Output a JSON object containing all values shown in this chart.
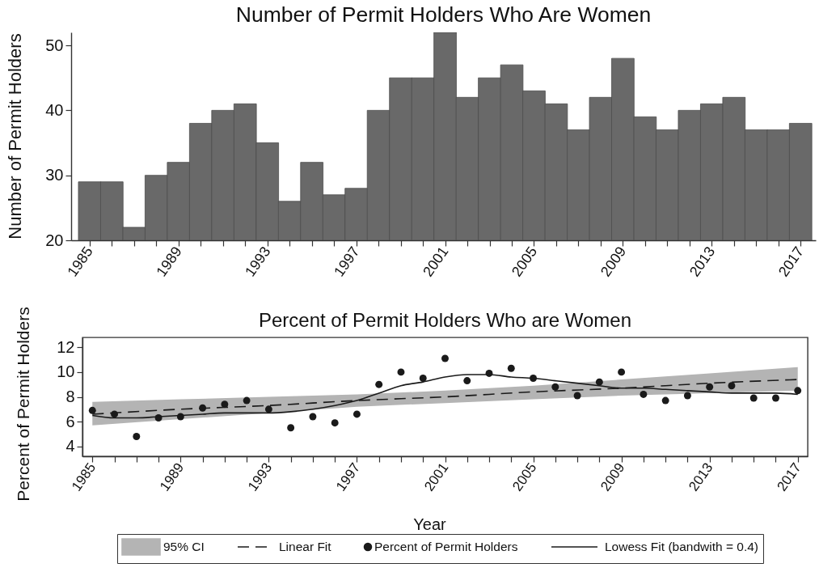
{
  "chart_data": [
    {
      "type": "bar",
      "title": "Number of Permit Holders Who Are Women",
      "ylabel": "Number of Permit Holders",
      "x": [
        1985,
        1986,
        1987,
        1988,
        1989,
        1990,
        1991,
        1992,
        1993,
        1994,
        1995,
        1996,
        1997,
        1998,
        1999,
        2000,
        2001,
        2002,
        2003,
        2004,
        2005,
        2006,
        2007,
        2008,
        2009,
        2010,
        2011,
        2012,
        2013,
        2014,
        2015,
        2016,
        2017
      ],
      "values": [
        29,
        29,
        22,
        30,
        32,
        38,
        40,
        41,
        35,
        26,
        32,
        27,
        28,
        40,
        45,
        45,
        52,
        42,
        45,
        47,
        43,
        41,
        37,
        42,
        48,
        39,
        37,
        40,
        41,
        42,
        37,
        37,
        38
      ],
      "color": "#696969",
      "xlim": [
        1984.35,
        2017.5
      ],
      "xticks": [
        1985,
        {
          "value": 1986,
          "label": null
        },
        {
          "value": 1987,
          "label": null
        },
        {
          "value": 1988,
          "label": null
        },
        1989,
        {
          "value": 1990,
          "label": null
        },
        {
          "value": 1991,
          "label": null
        },
        {
          "value": 1992,
          "label": null
        },
        1993,
        {
          "value": 1994,
          "label": null
        },
        {
          "value": 1995,
          "label": null
        },
        {
          "value": 1996,
          "label": null
        },
        1997,
        {
          "value": 1998,
          "label": null
        },
        {
          "value": 1999,
          "label": null
        },
        {
          "value": 2000,
          "label": null
        },
        2001,
        {
          "value": 2002,
          "label": null
        },
        {
          "value": 2003,
          "label": null
        },
        {
          "value": 2004,
          "label": null
        },
        2005,
        {
          "value": 2006,
          "label": null
        },
        {
          "value": 2007,
          "label": null
        },
        {
          "value": 2008,
          "label": null
        },
        2009,
        {
          "value": 2010,
          "label": null
        },
        {
          "value": 2011,
          "label": null
        },
        {
          "value": 2012,
          "label": null
        },
        2013,
        {
          "value": 2014,
          "label": null
        },
        {
          "value": 2015,
          "label": null
        },
        {
          "value": 2016,
          "label": null
        },
        2017
      ],
      "ylim": [
        20,
        52
      ],
      "yticks": [
        20,
        30,
        40,
        50
      ]
    },
    {
      "type": "scatter",
      "title": "Percent of Permit Holders Who are Women",
      "xlabel": "Year",
      "ylabel": "Percent of Permit Holders",
      "x": [
        1985,
        1986,
        1987,
        1988,
        1989,
        1990,
        1991,
        1992,
        1993,
        1994,
        1995,
        1996,
        1997,
        1998,
        1999,
        2000,
        2001,
        2002,
        2003,
        2004,
        2005,
        2006,
        2007,
        2008,
        2009,
        2010,
        2011,
        2012,
        2013,
        2014,
        2015,
        2016,
        2017
      ],
      "series": [
        {
          "name": "Linear Fit",
          "type": "line",
          "line_style": "dashed",
          "color": "#1a1a1a",
          "x": [
            1985,
            1989,
            1993,
            1997,
            2001,
            2005,
            2009,
            2013,
            2017
          ],
          "values": [
            6.6,
            7.0,
            7.3,
            7.7,
            8.0,
            8.4,
            8.7,
            9.1,
            9.4
          ],
          "lower": [
            5.7,
            6.2,
            6.7,
            7.2,
            7.5,
            7.8,
            8.1,
            8.3,
            8.5
          ],
          "upper": [
            7.6,
            7.8,
            8.0,
            8.2,
            8.5,
            8.9,
            9.4,
            9.9,
            10.4
          ]
        },
        {
          "name": "Percent of Permit Holders",
          "type": "scatter",
          "marker": "circle",
          "color": "#1a1a1a",
          "values": [
            6.9,
            6.6,
            4.8,
            6.3,
            6.4,
            7.1,
            7.4,
            7.7,
            7.0,
            5.5,
            6.4,
            5.9,
            6.6,
            9.0,
            10.0,
            9.5,
            11.1,
            9.3,
            9.9,
            10.3,
            9.5,
            8.8,
            8.1,
            9.2,
            10.0,
            8.2,
            7.7,
            8.1,
            8.8,
            8.9,
            7.9,
            7.9,
            8.5
          ]
        },
        {
          "name": "Lowess Fit (bandwith = 0.4)",
          "type": "line",
          "line_style": "solid",
          "color": "#1a1a1a",
          "values": [
            6.5,
            6.3,
            6.3,
            6.4,
            6.5,
            6.6,
            6.7,
            6.7,
            6.7,
            6.8,
            7.0,
            7.3,
            7.7,
            8.3,
            8.9,
            9.2,
            9.6,
            9.8,
            9.8,
            9.6,
            9.5,
            9.3,
            9.1,
            8.9,
            8.7,
            8.7,
            8.6,
            8.5,
            8.4,
            8.3,
            8.3,
            8.3,
            8.2
          ]
        }
      ],
      "annotations": [
        "95% CI"
      ],
      "xlim": [
        1984.55,
        2017.45
      ],
      "xticks": [
        1985,
        {
          "value": 1986,
          "label": null
        },
        {
          "value": 1987,
          "label": null
        },
        {
          "value": 1988,
          "label": null
        },
        1989,
        {
          "value": 1990,
          "label": null
        },
        {
          "value": 1991,
          "label": null
        },
        {
          "value": 1992,
          "label": null
        },
        1993,
        {
          "value": 1994,
          "label": null
        },
        {
          "value": 1995,
          "label": null
        },
        {
          "value": 1996,
          "label": null
        },
        1997,
        {
          "value": 1998,
          "label": null
        },
        {
          "value": 1999,
          "label": null
        },
        {
          "value": 2000,
          "label": null
        },
        2001,
        {
          "value": 2002,
          "label": null
        },
        {
          "value": 2003,
          "label": null
        },
        {
          "value": 2004,
          "label": null
        },
        2005,
        {
          "value": 2006,
          "label": null
        },
        {
          "value": 2007,
          "label": null
        },
        {
          "value": 2008,
          "label": null
        },
        2009,
        {
          "value": 2010,
          "label": null
        },
        {
          "value": 2011,
          "label": null
        },
        {
          "value": 2012,
          "label": null
        },
        2013,
        {
          "value": 2014,
          "label": null
        },
        {
          "value": 2015,
          "label": null
        },
        {
          "value": 2016,
          "label": null
        },
        2017
      ],
      "ylim": [
        3.2,
        12.8
      ],
      "yticks": [
        4,
        6,
        8,
        10,
        12
      ],
      "legend": "bottom"
    }
  ]
}
